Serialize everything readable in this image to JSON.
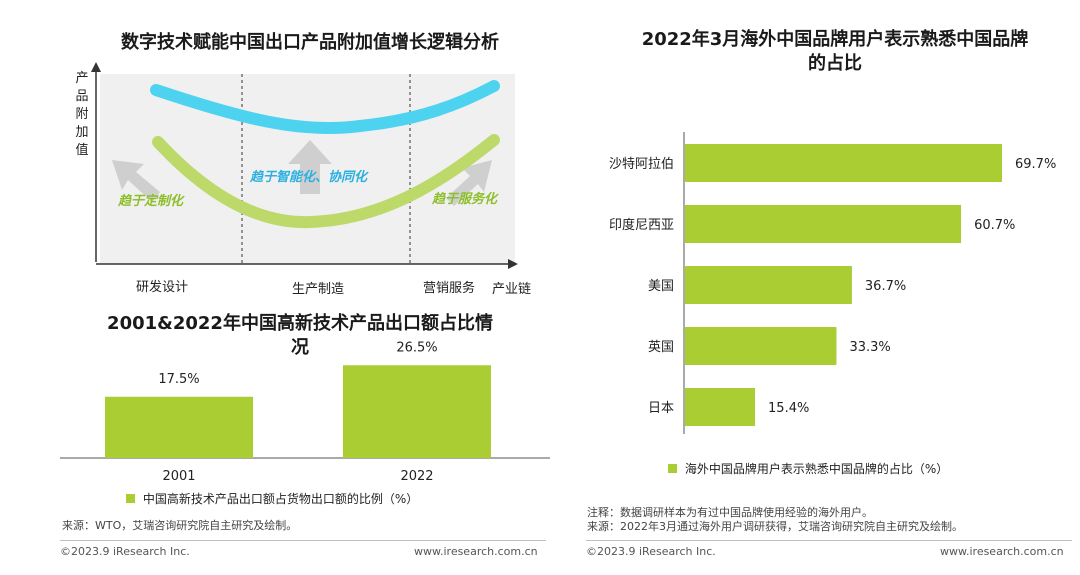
{
  "left": {
    "diagram": {
      "title": "数字技术赋能中国出口产品附加值增长逻辑分析",
      "y_axis_label": "产品附加值",
      "x_axis_label": "产业链",
      "stages": [
        "研发设计",
        "生产制造",
        "营销服务"
      ],
      "annotations": [
        "趋于定制化",
        "趋于智能化、协同化",
        "趋于服务化"
      ],
      "colors": {
        "upper_curve": "#4dd3f0",
        "lower_curve": "#bcd96a",
        "panel": "#f0f0f0",
        "text_green": "#8dbf2a",
        "text_blue": "#2ab0e0"
      }
    },
    "chart_data": {
      "type": "bar",
      "title": "2001&2022年中国高新技术产品出口额占比情况",
      "categories": [
        "2001",
        "2022"
      ],
      "series": [
        {
          "name": "中国高新技术产品出口额占货物出口额的比例（%）",
          "values": [
            17.5,
            26.5
          ]
        }
      ],
      "data_labels": [
        "17.5%",
        "26.5%"
      ],
      "ylim": [
        0,
        30
      ],
      "color": "#a9cd33",
      "legend_position": "bottom"
    },
    "source": "来源：WTO，艾瑞咨询研究院自主研究及绘制。",
    "footer": {
      "copyright": "©2023.9 iResearch Inc.",
      "url": "www.iresearch.com.cn"
    }
  },
  "right": {
    "chart_data": {
      "type": "bar",
      "orientation": "horizontal",
      "title": "2022年3月海外中国品牌用户表示熟悉中国品牌的占比",
      "categories": [
        "沙特阿拉伯",
        "印度尼西亚",
        "美国",
        "英国",
        "日本"
      ],
      "series": [
        {
          "name": "海外中国品牌用户表示熟悉中国品牌的占比（%）",
          "values": [
            69.7,
            60.7,
            36.7,
            33.3,
            15.4
          ]
        }
      ],
      "data_labels": [
        "69.7%",
        "60.7%",
        "36.7%",
        "33.3%",
        "15.4%"
      ],
      "xlim": [
        0,
        75
      ],
      "color": "#a9cd33",
      "legend_position": "bottom"
    },
    "notes": {
      "note": "注释：数据调研样本为有过中国品牌使用经验的海外用户。",
      "source": "来源：2022年3月通过海外用户调研获得，艾瑞咨询研究院自主研究及绘制。"
    },
    "footer": {
      "copyright": "©2023.9 iResearch Inc.",
      "url": "www.iresearch.com.cn"
    }
  }
}
